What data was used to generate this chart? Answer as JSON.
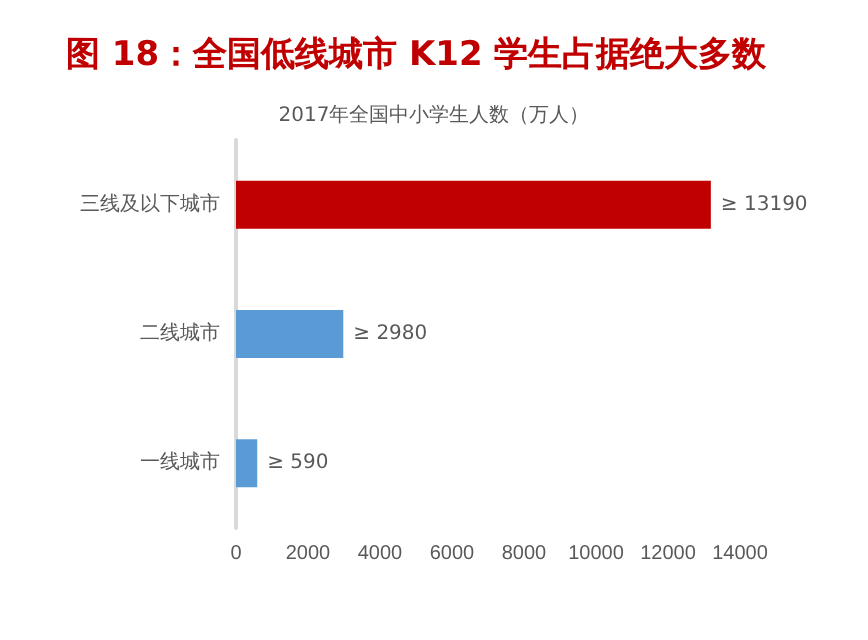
{
  "chart_data": {
    "type": "bar",
    "orientation": "horizontal",
    "title": "图 18：全国低线城市 K12 学生占据绝大多数",
    "subtitle": "2017年全国中小学生人数（万人）",
    "categories": [
      "三线及以下城市",
      "二线城市",
      "一线城市"
    ],
    "values": [
      13190,
      2980,
      590
    ],
    "colors": [
      "#c00000",
      "#5b9bd5",
      "#5b9bd5"
    ],
    "value_labels": [
      "≥ 13190",
      "≥ 2980",
      "≥ 590"
    ],
    "xlim": [
      0,
      14000
    ],
    "xticks": [
      0,
      2000,
      4000,
      6000,
      8000,
      10000,
      12000,
      14000
    ],
    "grid": false
  }
}
